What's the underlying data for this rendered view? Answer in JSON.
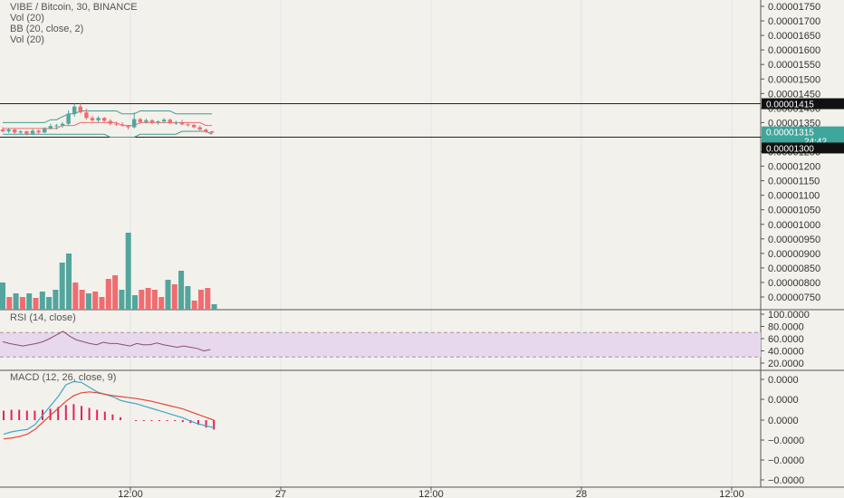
{
  "legends": {
    "main": [
      "VIBE / Bitcoin, 30, BINANCE",
      "Vol (20)",
      "BB (20, close, 2)",
      "Vol (20)"
    ],
    "rsi": "RSI (14, close)",
    "macd": "MACD (12, 26, close, 9)"
  },
  "colors": {
    "up": "#53a59d",
    "down": "#ee6d71",
    "bb": "#3f9d93",
    "rsi_line": "#8a4e72",
    "rsi_band": "#e7d8ee",
    "macd_line": "#40a7c4",
    "signal_line": "#e4473a",
    "hist": "#e0245e"
  },
  "axes": {
    "price_ticks": [
      "0.00001750",
      "0.00001700",
      "0.00001650",
      "0.00001600",
      "0.00001550",
      "0.00001500",
      "0.00001450",
      "0.00001400",
      "0.00001350",
      "0.00001300",
      "0.00001250",
      "0.00001200",
      "0.00001150",
      "0.00001100",
      "0.00001050",
      "0.00001000",
      "0.00000950",
      "0.00000900",
      "0.00000850",
      "0.00000800",
      "0.00000750"
    ],
    "rsi_ticks": [
      "100.0000",
      "80.0000",
      "60.0000",
      "40.0000",
      "20.0000"
    ],
    "macd_ticks": [
      "0.0000",
      "0.0000",
      "0.0000",
      "0.0000",
      "−0.0000",
      "−0.0000",
      "−0.0000"
    ],
    "time_ticks": [
      "12:00",
      "27",
      "12:00",
      "28",
      "12:00"
    ]
  },
  "price_tags": {
    "upper": "0.00001415",
    "current": "0.00001315",
    "countdown": "24:42",
    "lower": "0.00001300"
  },
  "chart_data": [
    {
      "type": "candlestick",
      "title": "VIBE / Bitcoin, 30, BINANCE",
      "ylim": [
        7.4e-06,
        1.77e-05
      ],
      "candles": [
        {
          "o": 1.326e-05,
          "h": 1.334e-05,
          "l": 1.316e-05,
          "c": 1.32e-05
        },
        {
          "o": 1.32e-05,
          "h": 1.332e-05,
          "l": 1.314e-05,
          "c": 1.326e-05
        },
        {
          "o": 1.326e-05,
          "h": 1.33e-05,
          "l": 1.312e-05,
          "c": 1.316e-05
        },
        {
          "o": 1.316e-05,
          "h": 1.324e-05,
          "l": 1.31e-05,
          "c": 1.32e-05
        },
        {
          "o": 1.32e-05,
          "h": 1.322e-05,
          "l": 1.306e-05,
          "c": 1.312e-05
        },
        {
          "o": 1.312e-05,
          "h": 1.328e-05,
          "l": 1.308e-05,
          "c": 1.322e-05
        },
        {
          "o": 1.322e-05,
          "h": 1.326e-05,
          "l": 1.312e-05,
          "c": 1.316e-05
        },
        {
          "o": 1.316e-05,
          "h": 1.334e-05,
          "l": 1.314e-05,
          "c": 1.33e-05
        },
        {
          "o": 1.33e-05,
          "h": 1.346e-05,
          "l": 1.326e-05,
          "c": 1.338e-05
        },
        {
          "o": 1.338e-05,
          "h": 1.346e-05,
          "l": 1.326e-05,
          "c": 1.34e-05
        },
        {
          "o": 1.34e-05,
          "h": 1.352e-05,
          "l": 1.332e-05,
          "c": 1.346e-05
        },
        {
          "o": 1.346e-05,
          "h": 1.392e-05,
          "l": 1.34e-05,
          "c": 1.38e-05
        },
        {
          "o": 1.38e-05,
          "h": 1.415e-05,
          "l": 1.37e-05,
          "c": 1.405e-05
        },
        {
          "o": 1.405e-05,
          "h": 1.415e-05,
          "l": 1.382e-05,
          "c": 1.385e-05
        },
        {
          "o": 1.385e-05,
          "h": 1.398e-05,
          "l": 1.36e-05,
          "c": 1.366e-05
        },
        {
          "o": 1.366e-05,
          "h": 1.374e-05,
          "l": 1.352e-05,
          "c": 1.358e-05
        },
        {
          "o": 1.358e-05,
          "h": 1.372e-05,
          "l": 1.35e-05,
          "c": 1.366e-05
        },
        {
          "o": 1.366e-05,
          "h": 1.37e-05,
          "l": 1.352e-05,
          "c": 1.356e-05
        },
        {
          "o": 1.356e-05,
          "h": 1.362e-05,
          "l": 1.34e-05,
          "c": 1.346e-05
        },
        {
          "o": 1.346e-05,
          "h": 1.354e-05,
          "l": 1.338e-05,
          "c": 1.344e-05
        },
        {
          "o": 1.344e-05,
          "h": 1.352e-05,
          "l": 1.336e-05,
          "c": 1.34e-05
        },
        {
          "o": 1.34e-05,
          "h": 1.342e-05,
          "l": 1.326e-05,
          "c": 1.334e-05
        },
        {
          "o": 1.334e-05,
          "h": 1.385e-05,
          "l": 1.33e-05,
          "c": 1.362e-05
        },
        {
          "o": 1.362e-05,
          "h": 1.366e-05,
          "l": 1.346e-05,
          "c": 1.352e-05
        },
        {
          "o": 1.352e-05,
          "h": 1.364e-05,
          "l": 1.346e-05,
          "c": 1.358e-05
        },
        {
          "o": 1.358e-05,
          "h": 1.362e-05,
          "l": 1.344e-05,
          "c": 1.35e-05
        },
        {
          "o": 1.35e-05,
          "h": 1.358e-05,
          "l": 1.342e-05,
          "c": 1.354e-05
        },
        {
          "o": 1.354e-05,
          "h": 1.366e-05,
          "l": 1.348e-05,
          "c": 1.36e-05
        },
        {
          "o": 1.36e-05,
          "h": 1.364e-05,
          "l": 1.344e-05,
          "c": 1.348e-05
        },
        {
          "o": 1.348e-05,
          "h": 1.356e-05,
          "l": 1.342e-05,
          "c": 1.35e-05
        },
        {
          "o": 1.35e-05,
          "h": 1.36e-05,
          "l": 1.34e-05,
          "c": 1.344e-05
        },
        {
          "o": 1.344e-05,
          "h": 1.35e-05,
          "l": 1.336e-05,
          "c": 1.342e-05
        },
        {
          "o": 1.342e-05,
          "h": 1.346e-05,
          "l": 1.33e-05,
          "c": 1.334e-05
        },
        {
          "o": 1.334e-05,
          "h": 1.34e-05,
          "l": 1.322e-05,
          "c": 1.326e-05
        },
        {
          "o": 1.326e-05,
          "h": 1.33e-05,
          "l": 1.314e-05,
          "c": 1.32e-05
        },
        {
          "o": 1.32e-05,
          "h": 1.322e-05,
          "l": 1.312e-05,
          "c": 1.315e-05
        }
      ],
      "bb_upper": [
        1.35e-05,
        1.35e-05,
        1.35e-05,
        1.35e-05,
        1.35e-05,
        1.35e-05,
        1.35e-05,
        1.35e-05,
        1.36e-05,
        1.36e-05,
        1.37e-05,
        1.38e-05,
        1.38e-05,
        1.39e-05,
        1.39e-05,
        1.39e-05,
        1.39e-05,
        1.39e-05,
        1.39e-05,
        1.39e-05,
        1.38e-05,
        1.38e-05,
        1.38e-05,
        1.39e-05,
        1.39e-05,
        1.39e-05,
        1.39e-05,
        1.39e-05,
        1.39e-05,
        1.38e-05,
        1.38e-05,
        1.38e-05,
        1.38e-05,
        1.38e-05,
        1.38e-05,
        1.38e-05
      ],
      "bb_lower": [
        1.31e-05,
        1.31e-05,
        1.31e-05,
        1.31e-05,
        1.31e-05,
        1.31e-05,
        1.31e-05,
        1.31e-05,
        1.31e-05,
        1.31e-05,
        1.31e-05,
        1.31e-05,
        1.31e-05,
        1.31e-05,
        1.31e-05,
        1.31e-05,
        1.31e-05,
        1.31e-05,
        1.3e-05,
        1.3e-05,
        1.3e-05,
        1.3e-05,
        1.3e-05,
        1.31e-05,
        1.31e-05,
        1.31e-05,
        1.31e-05,
        1.31e-05,
        1.31e-05,
        1.31e-05,
        1.32e-05,
        1.32e-05,
        1.32e-05,
        1.32e-05,
        1.32e-05,
        1.31e-05
      ],
      "bb_basis": [
        1.33e-05,
        1.33e-05,
        1.33e-05,
        1.33e-05,
        1.33e-05,
        1.33e-05,
        1.33e-05,
        1.33e-05,
        1.33e-05,
        1.33e-05,
        1.34e-05,
        1.34e-05,
        1.34e-05,
        1.35e-05,
        1.35e-05,
        1.35e-05,
        1.35e-05,
        1.35e-05,
        1.35e-05,
        1.35e-05,
        1.34e-05,
        1.34e-05,
        1.34e-05,
        1.35e-05,
        1.35e-05,
        1.35e-05,
        1.35e-05,
        1.35e-05,
        1.35e-05,
        1.35e-05,
        1.35e-05,
        1.35e-05,
        1.35e-05,
        1.35e-05,
        1.34e-05,
        1.34e-05
      ],
      "volume": [
        {
          "v": 30,
          "up": true
        },
        {
          "v": 14,
          "up": false
        },
        {
          "v": 18,
          "up": true
        },
        {
          "v": 14,
          "up": false
        },
        {
          "v": 18,
          "up": true
        },
        {
          "v": 13,
          "up": false
        },
        {
          "v": 20,
          "up": true
        },
        {
          "v": 14,
          "up": true
        },
        {
          "v": 22,
          "up": true
        },
        {
          "v": 52,
          "up": true
        },
        {
          "v": 62,
          "up": true
        },
        {
          "v": 30,
          "up": false
        },
        {
          "v": 22,
          "up": false
        },
        {
          "v": 18,
          "up": true
        },
        {
          "v": 20,
          "up": false
        },
        {
          "v": 14,
          "up": false
        },
        {
          "v": 34,
          "up": false
        },
        {
          "v": 38,
          "up": false
        },
        {
          "v": 22,
          "up": true
        },
        {
          "v": 85,
          "up": true
        },
        {
          "v": 16,
          "up": true
        },
        {
          "v": 22,
          "up": false
        },
        {
          "v": 24,
          "up": false
        },
        {
          "v": 22,
          "up": false
        },
        {
          "v": 14,
          "up": false
        },
        {
          "v": 33,
          "up": true
        },
        {
          "v": 28,
          "up": false
        },
        {
          "v": 43,
          "up": true
        },
        {
          "v": 26,
          "up": true
        },
        {
          "v": 10,
          "up": false
        },
        {
          "v": 22,
          "up": false
        },
        {
          "v": 24,
          "up": false
        },
        {
          "v": 6,
          "up": true
        }
      ]
    },
    {
      "type": "line",
      "title": "RSI (14, close)",
      "ylim": [
        0,
        100
      ],
      "band": [
        30,
        70
      ],
      "values": [
        55,
        52,
        50,
        48,
        50,
        52,
        55,
        60,
        66,
        72,
        64,
        58,
        55,
        52,
        50,
        54,
        52,
        52,
        50,
        48,
        52,
        50,
        50,
        53,
        50,
        48,
        46,
        48,
        46,
        44,
        40,
        42
      ]
    },
    {
      "type": "line",
      "title": "MACD (12, 26, close, 9)",
      "series": [
        {
          "values": [
            -30,
            -25,
            -22,
            -20,
            -10,
            10,
            30,
            50,
            75,
            82,
            80,
            70,
            60,
            55,
            50,
            42,
            38,
            35,
            30,
            25,
            20,
            15,
            10,
            5,
            -2,
            -8,
            -12,
            -16
          ]
        },
        {
          "values": [
            -40,
            -38,
            -35,
            -30,
            -20,
            -5,
            10,
            25,
            40,
            52,
            58,
            60,
            58,
            55,
            52,
            50,
            48,
            46,
            43,
            40,
            36,
            32,
            28,
            24,
            18,
            12,
            6,
            0
          ]
        },
        {
          "values": [
            20,
            22,
            22,
            20,
            20,
            22,
            24,
            28,
            32,
            34,
            30,
            26,
            22,
            18,
            12,
            6,
            0,
            -2,
            -2,
            -2,
            -2,
            -2,
            -2,
            -4,
            -6,
            -10,
            -16,
            -20
          ]
        }
      ],
      "ylim": [
        -70,
        95
      ]
    }
  ]
}
